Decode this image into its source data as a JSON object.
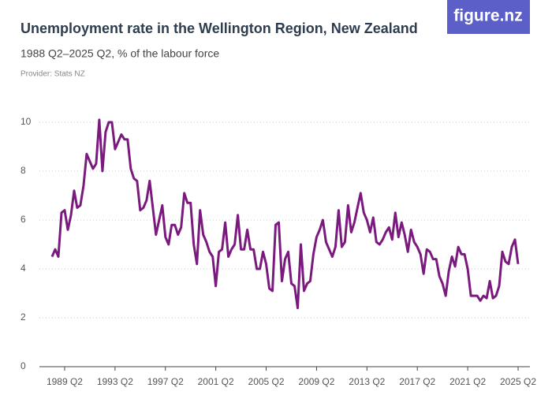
{
  "brand": "figure.nz",
  "chart_data": {
    "type": "line",
    "title": "Unemployment rate in the Wellington Region, New Zealand",
    "subtitle": "1988 Q2–2025 Q2, % of the labour force",
    "source": "Provider: Stats NZ",
    "categories": [
      null,
      null,
      null,
      null,
      "1989 Q2",
      null,
      null,
      null,
      null,
      null,
      null,
      null,
      null,
      null,
      null,
      null,
      null,
      null,
      null,
      null,
      "1993 Q2",
      null,
      null,
      null,
      null,
      null,
      null,
      null,
      null,
      null,
      null,
      null,
      null,
      null,
      null,
      null,
      "1997 Q2",
      null,
      null,
      null,
      null,
      null,
      null,
      null,
      null,
      null,
      null,
      null,
      null,
      null,
      null,
      null,
      "2001 Q2",
      null,
      null,
      null,
      null,
      null,
      null,
      null,
      null,
      null,
      null,
      null,
      null,
      null,
      null,
      null,
      "2005 Q2",
      null,
      null,
      null,
      null,
      null,
      null,
      null,
      null,
      null,
      null,
      null,
      null,
      null,
      null,
      null,
      "2009 Q2",
      null,
      null,
      null,
      null,
      null,
      null,
      null,
      null,
      null,
      null,
      null,
      null,
      null,
      null,
      null,
      "2013 Q2",
      null,
      null,
      null,
      null,
      null,
      null,
      null,
      null,
      null,
      null,
      null,
      null,
      null,
      null,
      null,
      "2017 Q2",
      null,
      null,
      null,
      null,
      null,
      null,
      null,
      null,
      null,
      null,
      null,
      null,
      null,
      null,
      null,
      "2021 Q2",
      null,
      null,
      null,
      null,
      null,
      null,
      null,
      null,
      null,
      null,
      null,
      null,
      null,
      null,
      null,
      "2025 Q2"
    ],
    "values": [
      4.5,
      4.8,
      4.5,
      6.3,
      6.4,
      5.6,
      6.2,
      7.2,
      6.5,
      6.6,
      7.4,
      8.7,
      8.4,
      8.1,
      8.3,
      10.1,
      8.0,
      9.6,
      10.0,
      10.0,
      8.9,
      9.2,
      9.5,
      9.3,
      9.3,
      8.1,
      7.7,
      7.6,
      6.4,
      6.5,
      6.8,
      7.6,
      6.5,
      5.4,
      6.0,
      6.6,
      5.3,
      5.0,
      5.8,
      5.8,
      5.4,
      5.7,
      7.1,
      6.7,
      6.7,
      5.0,
      4.2,
      6.4,
      5.4,
      5.1,
      4.7,
      4.5,
      3.3,
      4.7,
      4.8,
      5.9,
      4.5,
      4.8,
      5.0,
      6.2,
      4.8,
      4.8,
      5.6,
      4.8,
      4.8,
      4.0,
      4.0,
      4.7,
      4.2,
      3.2,
      3.1,
      5.8,
      5.9,
      3.5,
      4.4,
      4.7,
      3.4,
      3.3,
      2.4,
      5.0,
      3.1,
      3.4,
      3.5,
      4.6,
      5.3,
      5.6,
      6.0,
      5.1,
      4.8,
      4.5,
      4.9,
      6.4,
      4.9,
      5.1,
      6.6,
      5.5,
      5.9,
      6.5,
      7.1,
      6.3,
      6.0,
      5.5,
      6.1,
      5.1,
      5.0,
      5.2,
      5.5,
      5.7,
      5.2,
      6.3,
      5.3,
      5.9,
      5.4,
      4.7,
      5.6,
      5.1,
      4.9,
      4.6,
      3.8,
      4.8,
      4.7,
      4.4,
      4.4,
      3.7,
      3.4,
      2.9,
      3.9,
      4.5,
      4.1,
      4.9,
      4.6,
      4.6,
      4.0,
      2.9,
      2.9,
      2.9,
      2.7,
      2.9,
      2.8,
      3.5,
      2.8,
      2.9,
      3.3,
      4.7,
      4.3,
      4.2,
      4.9,
      5.2,
      4.2
    ],
    "color": "#7b1a7e",
    "ylim": [
      0,
      10.5
    ],
    "yticks": [
      0,
      2,
      4,
      6,
      8,
      10
    ],
    "grid": true
  }
}
